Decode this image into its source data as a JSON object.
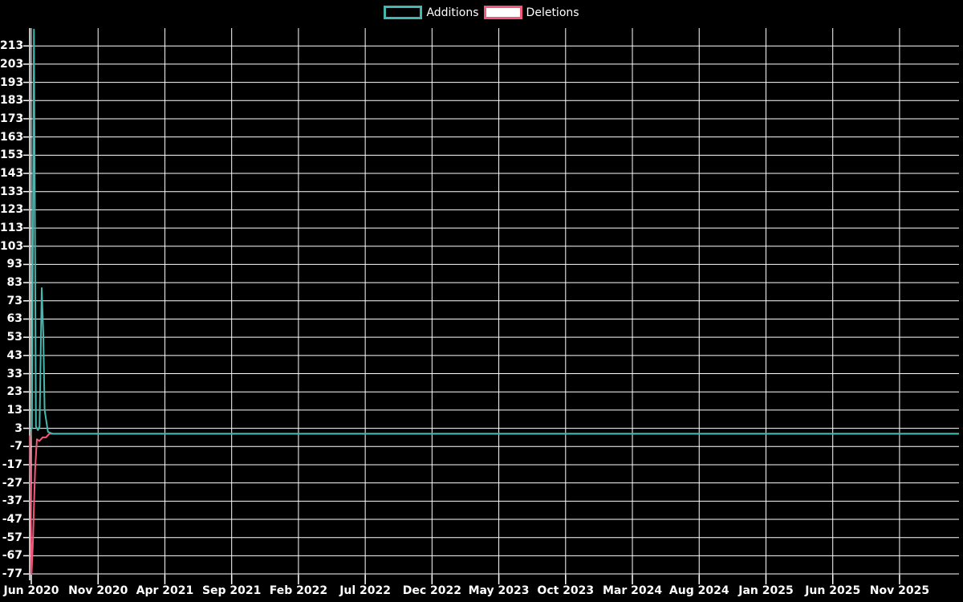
{
  "legend": [
    {
      "label": "Additions",
      "border_color": "#46b6b0",
      "fill_color": "#000000"
    },
    {
      "label": "Deletions",
      "border_color": "#f1597b",
      "fill_color": "#ffffff"
    }
  ],
  "chart_data": {
    "type": "line",
    "title": "",
    "xlabel": "",
    "ylabel": "",
    "grid": true,
    "legend_position": "top-center",
    "background_color": "#000000",
    "gridline_color": "#ffffff",
    "text_color": "#ffffff",
    "x_axis": {
      "unit": "months-since-start",
      "tick_labels": [
        "Jun 2020",
        "Nov 2020",
        "Apr 2021",
        "Sep 2021",
        "Feb 2022",
        "Jul 2022",
        "Dec 2022",
        "May 2023",
        "Oct 2023",
        "Mar 2024",
        "Aug 2024",
        "Jan 2025",
        "Jun 2025",
        "Nov 2025"
      ],
      "tick_month_index": [
        0,
        5,
        10,
        15,
        20,
        25,
        30,
        35,
        40,
        45,
        50,
        55,
        60,
        65
      ],
      "domain_months": [
        -0.12,
        69.45
      ]
    },
    "y_axis": {
      "tick_labels": [
        213,
        203,
        193,
        183,
        173,
        163,
        153,
        143,
        133,
        123,
        113,
        103,
        93,
        83,
        73,
        63,
        53,
        43,
        33,
        23,
        13,
        3,
        -7,
        -17,
        -27,
        -37,
        -47,
        -57,
        -67,
        -77
      ],
      "tick_step": 10,
      "domain": [
        -80.5,
        222.8
      ]
    },
    "series": [
      {
        "name": "Deletions",
        "color": "#f1597b",
        "max_value": 0,
        "min_value": -77,
        "points_month_value": [
          [
            -0.1,
            -1
          ],
          [
            0.02,
            -77
          ],
          [
            0.12,
            -60
          ],
          [
            0.2,
            -40
          ],
          [
            0.28,
            -20
          ],
          [
            0.42,
            -3
          ],
          [
            0.6,
            -4
          ],
          [
            0.85,
            -2
          ],
          [
            1.1,
            -2
          ],
          [
            1.35,
            0
          ],
          [
            69.45,
            0
          ]
        ]
      },
      {
        "name": "Additions",
        "color": "#46b6b0",
        "max_value": 222,
        "min_value": 0,
        "points_month_value": [
          [
            -0.1,
            2
          ],
          [
            0.05,
            3
          ],
          [
            0.2,
            222
          ],
          [
            0.35,
            4
          ],
          [
            0.5,
            2
          ],
          [
            0.62,
            4
          ],
          [
            0.78,
            80
          ],
          [
            0.9,
            54
          ],
          [
            1.0,
            13
          ],
          [
            1.25,
            1
          ],
          [
            1.6,
            0
          ],
          [
            69.45,
            0
          ]
        ]
      }
    ]
  }
}
